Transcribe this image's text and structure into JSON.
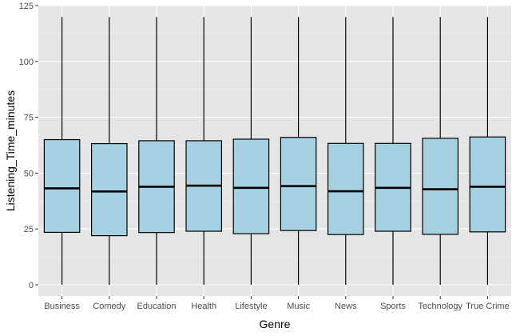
{
  "chart_data": {
    "type": "boxplot",
    "title": "",
    "xlabel": "Genre",
    "ylabel": "Listening_Time_minutes",
    "ylim": [
      -5,
      125
    ],
    "yticks": [
      0,
      25,
      50,
      75,
      100,
      125
    ],
    "grid": true,
    "legend": "none",
    "categories": [
      "Business",
      "Comedy",
      "Education",
      "Health",
      "Lifestyle",
      "Music",
      "News",
      "Sports",
      "Technology",
      "True Crime"
    ],
    "boxes": [
      {
        "min": 0,
        "q1": 23.5,
        "median": 43.2,
        "q3": 65.0,
        "max": 119.9
      },
      {
        "min": 0,
        "q1": 22.0,
        "median": 41.8,
        "q3": 63.2,
        "max": 119.9
      },
      {
        "min": 0,
        "q1": 23.4,
        "median": 43.9,
        "q3": 64.5,
        "max": 119.9
      },
      {
        "min": 0,
        "q1": 24.0,
        "median": 44.4,
        "q3": 64.5,
        "max": 119.9
      },
      {
        "min": 0,
        "q1": 22.9,
        "median": 43.4,
        "q3": 65.2,
        "max": 119.9
      },
      {
        "min": 0,
        "q1": 24.3,
        "median": 44.2,
        "q3": 66.0,
        "max": 119.9
      },
      {
        "min": 0,
        "q1": 22.5,
        "median": 41.9,
        "q3": 63.3,
        "max": 119.9
      },
      {
        "min": 0,
        "q1": 24.0,
        "median": 43.4,
        "q3": 63.3,
        "max": 119.9
      },
      {
        "min": 0,
        "q1": 22.6,
        "median": 42.8,
        "q3": 65.6,
        "max": 119.9
      },
      {
        "min": 0,
        "q1": 23.7,
        "median": 43.9,
        "q3": 66.2,
        "max": 119.9
      }
    ],
    "colors": {
      "panel": "#e5e5e5",
      "grid_major": "#ffffff",
      "grid_minor": "#f2f2f2",
      "box_fill": "#a6d1e2",
      "stroke": "#000000",
      "tick_text": "#4d4d4d"
    }
  }
}
